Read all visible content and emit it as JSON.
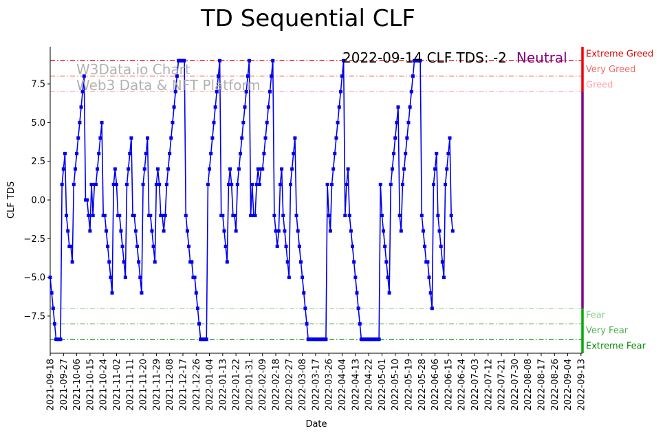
{
  "chart_data": {
    "type": "line",
    "title": "TD Sequential CLF",
    "xlabel": "Date",
    "ylabel": "CLF TDS",
    "ylim": [
      -9.9,
      9.9
    ],
    "yticks": [
      -7.5,
      -5.0,
      -2.5,
      0.0,
      2.5,
      5.0,
      7.5
    ],
    "ytick_labels": [
      "−7.5",
      "−5.0",
      "−2.5",
      "0.0",
      "2.5",
      "5.0",
      "7.5"
    ],
    "xticks": [
      "2021-09-18",
      "2021-09-27",
      "2021-10-06",
      "2021-10-15",
      "2021-10-24",
      "2021-11-02",
      "2021-11-11",
      "2021-11-20",
      "2021-11-29",
      "2021-12-08",
      "2021-12-17",
      "2021-12-26",
      "2022-01-04",
      "2022-01-13",
      "2022-01-22",
      "2022-01-31",
      "2022-02-09",
      "2022-02-18",
      "2022-02-27",
      "2022-03-08",
      "2022-03-17",
      "2022-03-26",
      "2022-04-04",
      "2022-04-13",
      "2022-04-22",
      "2022-05-01",
      "2022-05-10",
      "2022-05-19",
      "2022-05-28",
      "2022-06-06",
      "2022-06-15",
      "2022-06-24",
      "2022-07-03",
      "2022-07-12",
      "2022-07-21",
      "2022-07-30",
      "2022-08-08",
      "2022-08-17",
      "2022-08-26",
      "2022-09-04",
      "2022-09-13"
    ],
    "day_range": [
      0,
      361
    ],
    "series": [
      {
        "name": "CLF TDS",
        "color": "#0000ee",
        "start_date": "2021-09-18",
        "values": [
          -5,
          -6,
          -7,
          -8,
          -9,
          -9,
          -9,
          -9,
          1,
          2,
          3,
          -1,
          -2,
          -3,
          -3,
          -4,
          1,
          2,
          3,
          4,
          5,
          6,
          7,
          8,
          0,
          0,
          -1,
          -2,
          1,
          -1,
          1,
          1,
          2,
          3,
          4,
          5,
          -1,
          -1,
          -2,
          -3,
          -4,
          -5,
          -6,
          1,
          2,
          1,
          -1,
          -1,
          -2,
          -3,
          -4,
          -5,
          1,
          2,
          3,
          4,
          -1,
          -1,
          -2,
          -3,
          -4,
          -5,
          -6,
          1,
          2,
          3,
          4,
          -1,
          -1,
          -2,
          -3,
          -4,
          1,
          2,
          1,
          -1,
          -1,
          -2,
          -1,
          1,
          2,
          3,
          4,
          5,
          6,
          7,
          8,
          9,
          9,
          9,
          9,
          9,
          -1,
          -2,
          -3,
          -4,
          -4,
          -5,
          -5,
          -6,
          -7,
          -8,
          -9,
          -9,
          -9,
          -9,
          -9,
          1,
          2,
          3,
          4,
          5,
          6,
          7,
          8,
          9,
          -1,
          -1,
          -2,
          -3,
          -4,
          1,
          2,
          1,
          -1,
          -1,
          -2,
          1,
          2,
          3,
          4,
          5,
          6,
          7,
          8,
          9,
          -1,
          1,
          -1,
          -1,
          1,
          2,
          1,
          2,
          2,
          3,
          4,
          5,
          6,
          7,
          8,
          9,
          -1,
          -2,
          -3,
          -2,
          1,
          2,
          -1,
          -2,
          -3,
          -4,
          -5,
          1,
          2,
          3,
          4,
          -1,
          -2,
          -3,
          -4,
          -5,
          -6,
          -7,
          -8,
          -9,
          -9,
          -9,
          -9,
          -9,
          -9,
          -9,
          -9,
          -9,
          -9,
          -9,
          -9,
          -9,
          1,
          -1,
          -2,
          1,
          2,
          3,
          4,
          5,
          6,
          7,
          8,
          9,
          -1,
          1,
          2,
          -1,
          -2,
          -3,
          -4,
          -5,
          -6,
          -7,
          -8,
          -9,
          -9,
          -9,
          -9,
          -9,
          -9,
          -9,
          -9,
          -9,
          -9,
          -9,
          -9,
          -9,
          1,
          -1,
          -2,
          -3,
          -4,
          -5,
          -6,
          1,
          2,
          3,
          4,
          5,
          6,
          -1,
          -2,
          1,
          2,
          3,
          4,
          5,
          6,
          7,
          8,
          9,
          9,
          9,
          9,
          9,
          -1,
          -2,
          -3,
          -4,
          -4,
          -5,
          -6,
          -7,
          1,
          2,
          3,
          -1,
          -2,
          -3,
          -4,
          -5,
          1,
          2,
          3,
          4,
          -1,
          -2
        ]
      }
    ],
    "levels": [
      {
        "name": "Extreme Greed",
        "value": 9,
        "color": "#dd0000",
        "alpha": 1.0,
        "label": "Extreme Greed"
      },
      {
        "name": "Very Greed",
        "value": 8,
        "color": "#ee3333",
        "alpha": 0.75,
        "label": "Very Greed"
      },
      {
        "name": "Greed",
        "value": 7,
        "color": "#ff6666",
        "alpha": 0.55,
        "label": "Greed"
      },
      {
        "name": "Fear",
        "value": -7,
        "color": "#33aa33",
        "alpha": 0.5,
        "label": "Fear"
      },
      {
        "name": "Very Fear",
        "value": -8,
        "color": "#119911",
        "alpha": 0.75,
        "label": "Very Fear"
      },
      {
        "name": "Extreme Fear",
        "value": -9,
        "color": "#008800",
        "alpha": 1.0,
        "label": "Extreme Fear"
      }
    ],
    "side_bar": [
      {
        "from": 7,
        "to": 9.9,
        "color": "#ee0000"
      },
      {
        "from": -7,
        "to": 7,
        "color": "#800080"
      },
      {
        "from": -9.9,
        "to": -7,
        "color": "#00aa00"
      }
    ],
    "annotation": {
      "text": "2022-09-14 CLF TDS: -2",
      "state": "Neutral",
      "state_color": "#800080"
    },
    "watermark": {
      "line1": "W3Data.io Chart",
      "line2": "Web3 Data & NFT Platform"
    }
  }
}
